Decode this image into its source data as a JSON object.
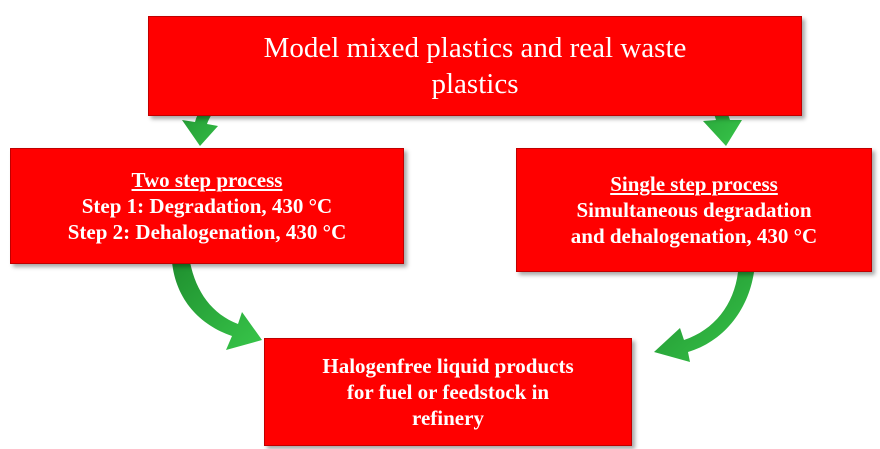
{
  "nodes": [
    {
      "lines": [
        "Model mixed plastics and real waste",
        "plastics"
      ]
    },
    {
      "title": "Two step process",
      "lines": [
        "Step 1: Degradation, 430 °C",
        "Step 2: Dehalogenation, 430 °C"
      ]
    },
    {
      "title": "Single step process",
      "lines": [
        "Simultaneous degradation",
        "and dehalogenation, 430 °C"
      ]
    },
    {
      "lines": [
        "Halogenfree liquid products",
        "for fuel or feedstock in",
        "refinery"
      ]
    }
  ]
}
